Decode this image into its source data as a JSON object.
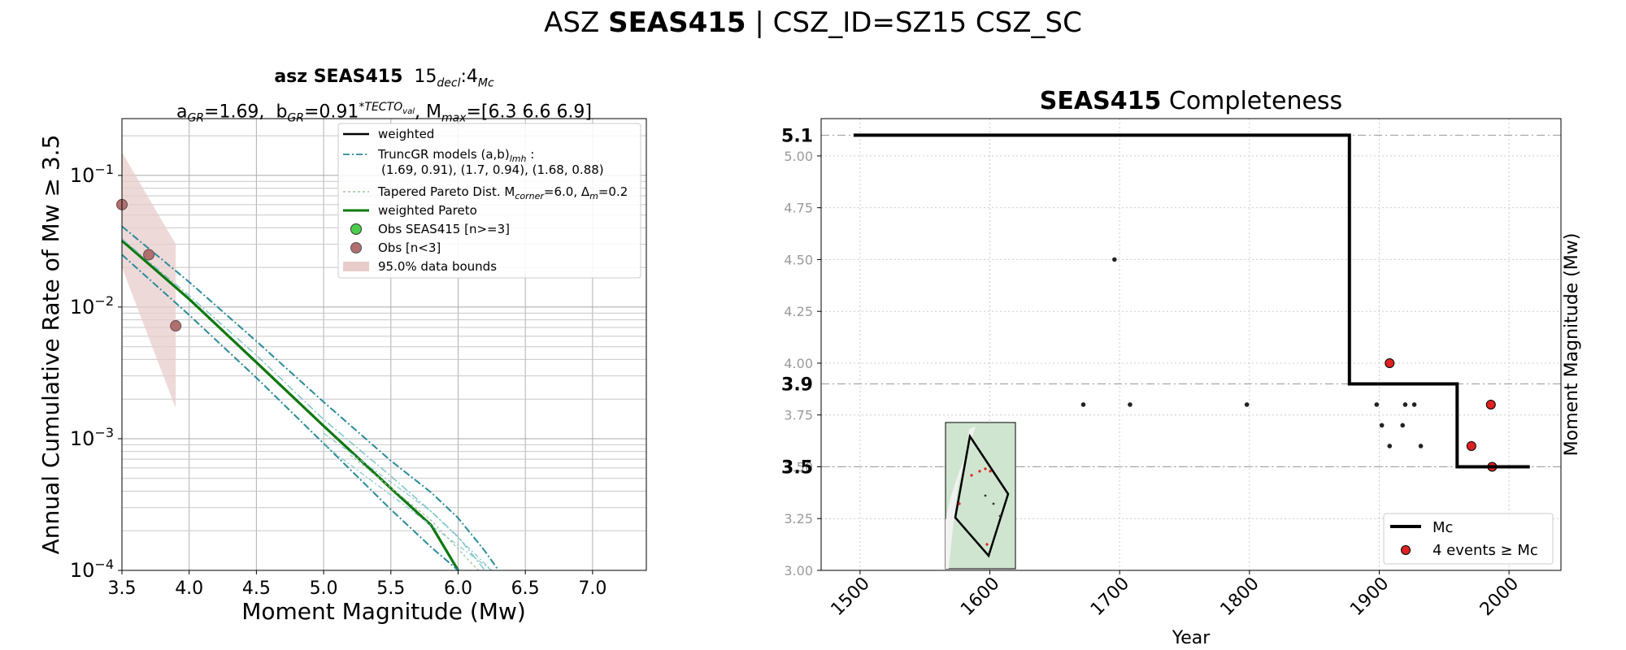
{
  "suptitle": {
    "prefix": "ASZ ",
    "bold": "SEAS415",
    "suffix": " | CSZ_ID=SZ15 CSZ_SC"
  },
  "chart_data": [
    {
      "type": "line",
      "title_bold": "asz SEAS415",
      "title_decl": "15",
      "title_decl_sub": "decl",
      "title_mc": ":4",
      "title_mc_sub": "Mc",
      "subtitle": {
        "a_label": "a",
        "a_sub": "GR",
        "a_val": "=1.69,",
        "b_label": "b",
        "b_sub": "GR",
        "b_val": "=0.91",
        "b_sup": "*TECTO",
        "b_sup_sub": "val",
        "mmax_label": ", M",
        "mmax_sub": "max",
        "mmax_val": "=[6.3 6.6 6.9]"
      },
      "xlabel": "Moment Magnitude (Mw)",
      "ylabel": "Annual Cumulative Rate of Mw  ≥  3.5",
      "xlim": [
        3.5,
        7.4
      ],
      "ylim": [
        0.0001,
        0.27
      ],
      "yscale": "log",
      "grid": true,
      "xticks": [
        "3.5",
        "4.0",
        "4.5",
        "5.0",
        "5.5",
        "6.0",
        "6.5",
        "7.0"
      ],
      "yticks": [
        {
          "base": "10",
          "exp": "−1",
          "value": 0.1
        },
        {
          "base": "10",
          "exp": "−2",
          "value": 0.01
        },
        {
          "base": "10",
          "exp": "−3",
          "value": 0.001
        },
        {
          "base": "10",
          "exp": "−4",
          "value": 0.0001
        }
      ],
      "legend_position": "top-right",
      "legend": {
        "weighted": "weighted",
        "truncgr_1": "TruncGR models (a,b)",
        "truncgr_sub": "lmh",
        "truncgr_colon": " :",
        "truncgr_2": "(1.69, 0.91), (1.7, 0.94), (1.68, 0.88)",
        "tapered": "Tapered Pareto Dist. M",
        "tapered_sub": "corner",
        "tapered_val": "=6.0, Δ",
        "tapered_sub2": "m",
        "tapered_val2": "=0.2",
        "weighted_pareto": "weighted Pareto",
        "obs_main": "Obs SEAS415 [n>=3]",
        "obs_small": "Obs [n<3]",
        "bounds": "95.0% data bounds"
      },
      "colors": {
        "weighted": "#000000",
        "truncgr": "#2a8a9a",
        "truncgr_light": "#7fc4c9",
        "tapered": "#9bc49b",
        "pareto": "#0a7a0a",
        "obs_main": "#4ccc4c",
        "obs_small": "#b07070",
        "bounds": "#e8cccc"
      },
      "series": [
        {
          "name": "weighted",
          "x": [
            3.5,
            4.0,
            4.5,
            5.0,
            5.5,
            5.8,
            6.0
          ],
          "y": [
            0.032,
            0.0115,
            0.0038,
            0.00125,
            0.00042,
            0.00022,
            0.0001
          ]
        },
        {
          "name": "weighted Pareto",
          "x": [
            3.5,
            4.0,
            4.5,
            5.0,
            5.5,
            5.8,
            6.0
          ],
          "y": [
            0.032,
            0.0115,
            0.0038,
            0.00125,
            0.00042,
            0.00022,
            0.0001
          ]
        },
        {
          "name": "TruncGR models (a,b)",
          "x": [
            3.5,
            4.0,
            4.5,
            5.0,
            5.5,
            5.8,
            6.0,
            6.2,
            6.3
          ],
          "y": [
            0.041,
            0.0155,
            0.0055,
            0.0019,
            0.00068,
            0.00039,
            0.00025,
            0.00014,
            0.0001
          ]
        },
        {
          "name": "",
          "x": [
            3.5,
            4.0,
            4.5,
            5.0,
            5.5,
            5.8,
            6.0
          ],
          "y": [
            0.025,
            0.0087,
            0.0029,
            0.00092,
            0.00029,
            0.00015,
            0.0001
          ]
        },
        {
          "name": "",
          "x": [
            3.5,
            4.0,
            4.5,
            5.0,
            5.5,
            5.8,
            6.0,
            6.2
          ],
          "y": [
            0.033,
            0.0122,
            0.0043,
            0.0014,
            0.00052,
            0.00028,
            0.00018,
            0.0001
          ]
        }
      ],
      "obs_small_points": [
        {
          "x": 3.5,
          "y": 0.06
        },
        {
          "x": 3.7,
          "y": 0.025
        },
        {
          "x": 3.9,
          "y": 0.0072
        }
      ],
      "bounds": {
        "x": [
          3.5,
          3.9
        ],
        "upper": [
          0.15,
          0.03
        ],
        "lower": [
          0.02,
          0.0017
        ]
      }
    },
    {
      "type": "scatter",
      "title_bold": "SEAS415",
      "title_rest": " Completeness",
      "xlabel": "Year",
      "ylabel": "Moment Magnitude (Mw)",
      "xlim": [
        1470,
        2040
      ],
      "ylim": [
        3.0,
        5.18
      ],
      "xticks": [
        "1500",
        "1600",
        "1700",
        "1800",
        "1900",
        "2000"
      ],
      "yticks": [
        "3.00",
        "3.25",
        "3.50",
        "3.75",
        "4.00",
        "4.25",
        "4.50",
        "4.75",
        "5.00"
      ],
      "bold_ticks": [
        "5.1",
        "3.9",
        "3.5"
      ],
      "legend_position": "bottom-right",
      "legend": {
        "mc": "Mc",
        "events": "4 events  ≥  Mc"
      },
      "colors": {
        "mc": "#000000",
        "events": "#dd2222",
        "minor": "#222222",
        "map_bg": "#cfe5cf"
      },
      "mc_step": {
        "x": [
          1495,
          1877,
          1877,
          1960,
          1960,
          2016
        ],
        "y": [
          5.1,
          5.1,
          3.9,
          3.9,
          3.5,
          3.5
        ]
      },
      "events_above_mc": [
        {
          "x": 1908,
          "y": 4.0
        },
        {
          "x": 1971,
          "y": 3.6
        },
        {
          "x": 1986,
          "y": 3.8
        },
        {
          "x": 1987,
          "y": 3.5
        }
      ],
      "events_below_mc": [
        {
          "x": 1696,
          "y": 4.5
        },
        {
          "x": 1672,
          "y": 3.8
        },
        {
          "x": 1708,
          "y": 3.8
        },
        {
          "x": 1798,
          "y": 3.8
        },
        {
          "x": 1898,
          "y": 3.8
        },
        {
          "x": 1902,
          "y": 3.7
        },
        {
          "x": 1908,
          "y": 3.6
        },
        {
          "x": 1920,
          "y": 3.8
        },
        {
          "x": 1927,
          "y": 3.8
        },
        {
          "x": 1932,
          "y": 3.6
        },
        {
          "x": 1918,
          "y": 3.7
        }
      ]
    }
  ]
}
